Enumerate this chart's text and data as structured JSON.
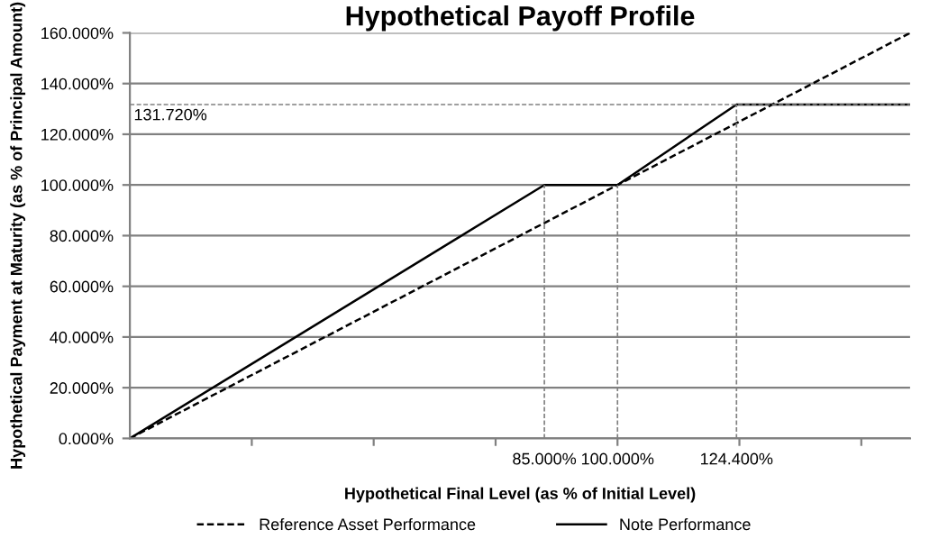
{
  "chart_data": {
    "type": "line",
    "title": "Hypothetical Payoff Profile",
    "xlabel": "Hypothetical Final Level (as % of Initial Level)",
    "ylabel": "Hypothetical Payment at Maturity (as % of Principal Amount)",
    "series": [
      {
        "name": "Reference Asset Performance",
        "color": "#000000",
        "line_style": "dashed",
        "x": [
          0,
          160
        ],
        "values": [
          0,
          160
        ]
      },
      {
        "name": "Note Performance",
        "color": "#000000",
        "line_style": "solid",
        "x": [
          0,
          85,
          100,
          124.4,
          160
        ],
        "values": [
          0,
          100,
          100,
          131.72,
          131.72
        ]
      }
    ],
    "xlim": [
      0,
      160
    ],
    "ylim": [
      0,
      160
    ],
    "xticks": [
      {
        "value": 25,
        "label": null
      },
      {
        "value": 50,
        "label": null
      },
      {
        "value": 75,
        "label": null
      },
      {
        "value": 100,
        "label": null
      },
      {
        "value": 125,
        "label": null
      },
      {
        "value": 150,
        "label": null
      }
    ],
    "yticks": [
      {
        "value": 0,
        "label": "0.000%"
      },
      {
        "value": 20,
        "label": "20.000%"
      },
      {
        "value": 40,
        "label": "40.000%"
      },
      {
        "value": 60,
        "label": "60.000%"
      },
      {
        "value": 80,
        "label": "80.000%"
      },
      {
        "value": 100,
        "label": "100.000%"
      },
      {
        "value": 120,
        "label": "120.000%"
      },
      {
        "value": 140,
        "label": "140.000%"
      },
      {
        "value": 160,
        "label": "160.000%"
      }
    ],
    "ref_lines": [
      {
        "axis": "x",
        "value": 85,
        "label": "85.000%",
        "color": "#808080",
        "line_style": "dashed"
      },
      {
        "axis": "x",
        "value": 100,
        "label": "100.000%",
        "color": "#808080",
        "line_style": "dashed"
      },
      {
        "axis": "x",
        "value": 124.4,
        "label": "124.400%",
        "color": "#808080",
        "line_style": "dashed"
      },
      {
        "axis": "y",
        "value": 131.72,
        "label": "131.720%",
        "color": "#808080",
        "line_style": "dashed"
      }
    ],
    "grid": "y",
    "legend": "bottom",
    "marker": "none"
  }
}
